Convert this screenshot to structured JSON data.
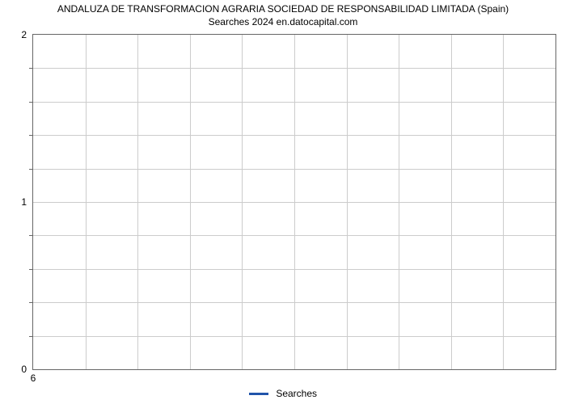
{
  "chart": {
    "type": "line",
    "title_line1": "ANDALUZA DE TRANSFORMACION AGRARIA SOCIEDAD DE RESPONSABILIDAD LIMITADA (Spain)",
    "title_line2": "Searches 2024 en.datocapital.com",
    "title_fontsize": 12,
    "title_color": "#000000",
    "data": {
      "categories": [],
      "values": []
    },
    "ylim": [
      0,
      2
    ],
    "xlim": [
      0,
      10
    ],
    "y_major_ticks": [
      0,
      1,
      2
    ],
    "y_minor_tick_count": 4,
    "x_major_ticks": [
      6
    ],
    "x_gridline_count": 10,
    "y_gridline_count": 10,
    "background_color": "#ffffff",
    "grid_color": "#cccccc",
    "border_color": "#666666",
    "axis_label_fontsize": 12,
    "axis_label_color": "#000000",
    "series_color": "#2154aa",
    "series_line_width": 3,
    "legend": {
      "position": "bottom-center",
      "items": [
        {
          "label": "Searches",
          "color": "#2154aa"
        }
      ],
      "fontsize": 12
    }
  }
}
